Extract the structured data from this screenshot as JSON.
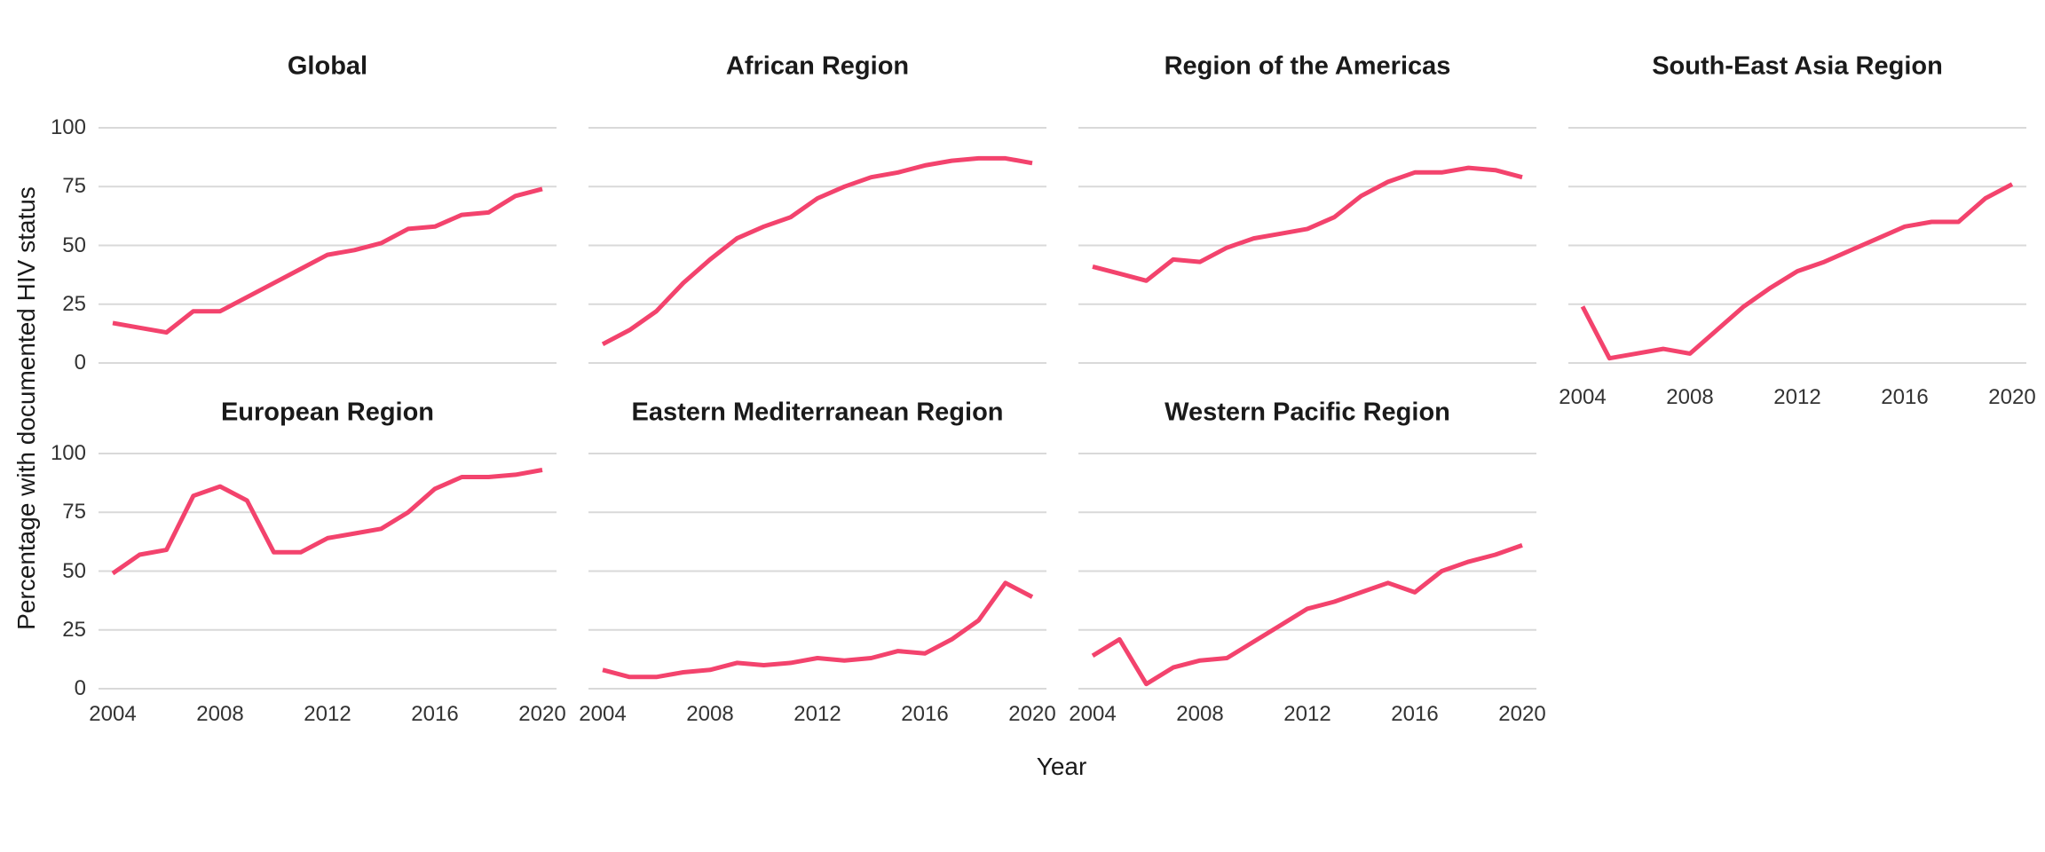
{
  "figure": {
    "xlabel": "Year",
    "ylabel": "Percentage with documented HIV status",
    "background_color": "#FFFFFF",
    "line_color": "#F3436D",
    "grid_color": "#D9D9D9",
    "title_color": "#1A1A1A",
    "tick_text_color": "#333333"
  },
  "chart_data": {
    "type": "line",
    "title": "",
    "xlabel": "Year",
    "ylabel": "Percentage with documented HIV status",
    "x": [
      2004,
      2005,
      2006,
      2007,
      2008,
      2009,
      2010,
      2011,
      2012,
      2013,
      2014,
      2015,
      2016,
      2017,
      2018,
      2019,
      2020
    ],
    "x_ticks": [
      2004,
      2008,
      2012,
      2016,
      2020
    ],
    "y_ticks": [
      0,
      25,
      50,
      75,
      100
    ],
    "ylim": [
      0,
      100
    ],
    "grid": "horizontal-major-only",
    "legend": "none",
    "facets": [
      {
        "title": "Global",
        "values": [
          17,
          15,
          13,
          22,
          22,
          28,
          34,
          40,
          46,
          48,
          51,
          57,
          58,
          63,
          64,
          71,
          74
        ]
      },
      {
        "title": "African Region",
        "values": [
          8,
          14,
          22,
          34,
          44,
          53,
          58,
          62,
          70,
          75,
          79,
          81,
          84,
          86,
          87,
          87,
          85
        ]
      },
      {
        "title": "Region of the Americas",
        "values": [
          41,
          38,
          35,
          44,
          43,
          49,
          53,
          55,
          57,
          62,
          71,
          77,
          81,
          81,
          83,
          82,
          79
        ]
      },
      {
        "title": "South-East Asia Region",
        "values": [
          24,
          2,
          4,
          6,
          4,
          14,
          24,
          32,
          39,
          43,
          48,
          53,
          58,
          60,
          60,
          70,
          76
        ]
      },
      {
        "title": "European Region",
        "values": [
          49,
          57,
          59,
          82,
          86,
          80,
          58,
          58,
          64,
          66,
          68,
          75,
          85,
          90,
          90,
          91,
          93
        ]
      },
      {
        "title": "Eastern Mediterranean Region",
        "values": [
          8,
          5,
          5,
          7,
          8,
          11,
          10,
          11,
          13,
          12,
          13,
          16,
          15,
          21,
          29,
          45,
          39
        ]
      },
      {
        "title": "Western Pacific Region",
        "values": [
          14,
          21,
          2,
          9,
          12,
          13,
          20,
          27,
          34,
          37,
          41,
          45,
          41,
          50,
          54,
          57,
          61
        ]
      }
    ]
  }
}
